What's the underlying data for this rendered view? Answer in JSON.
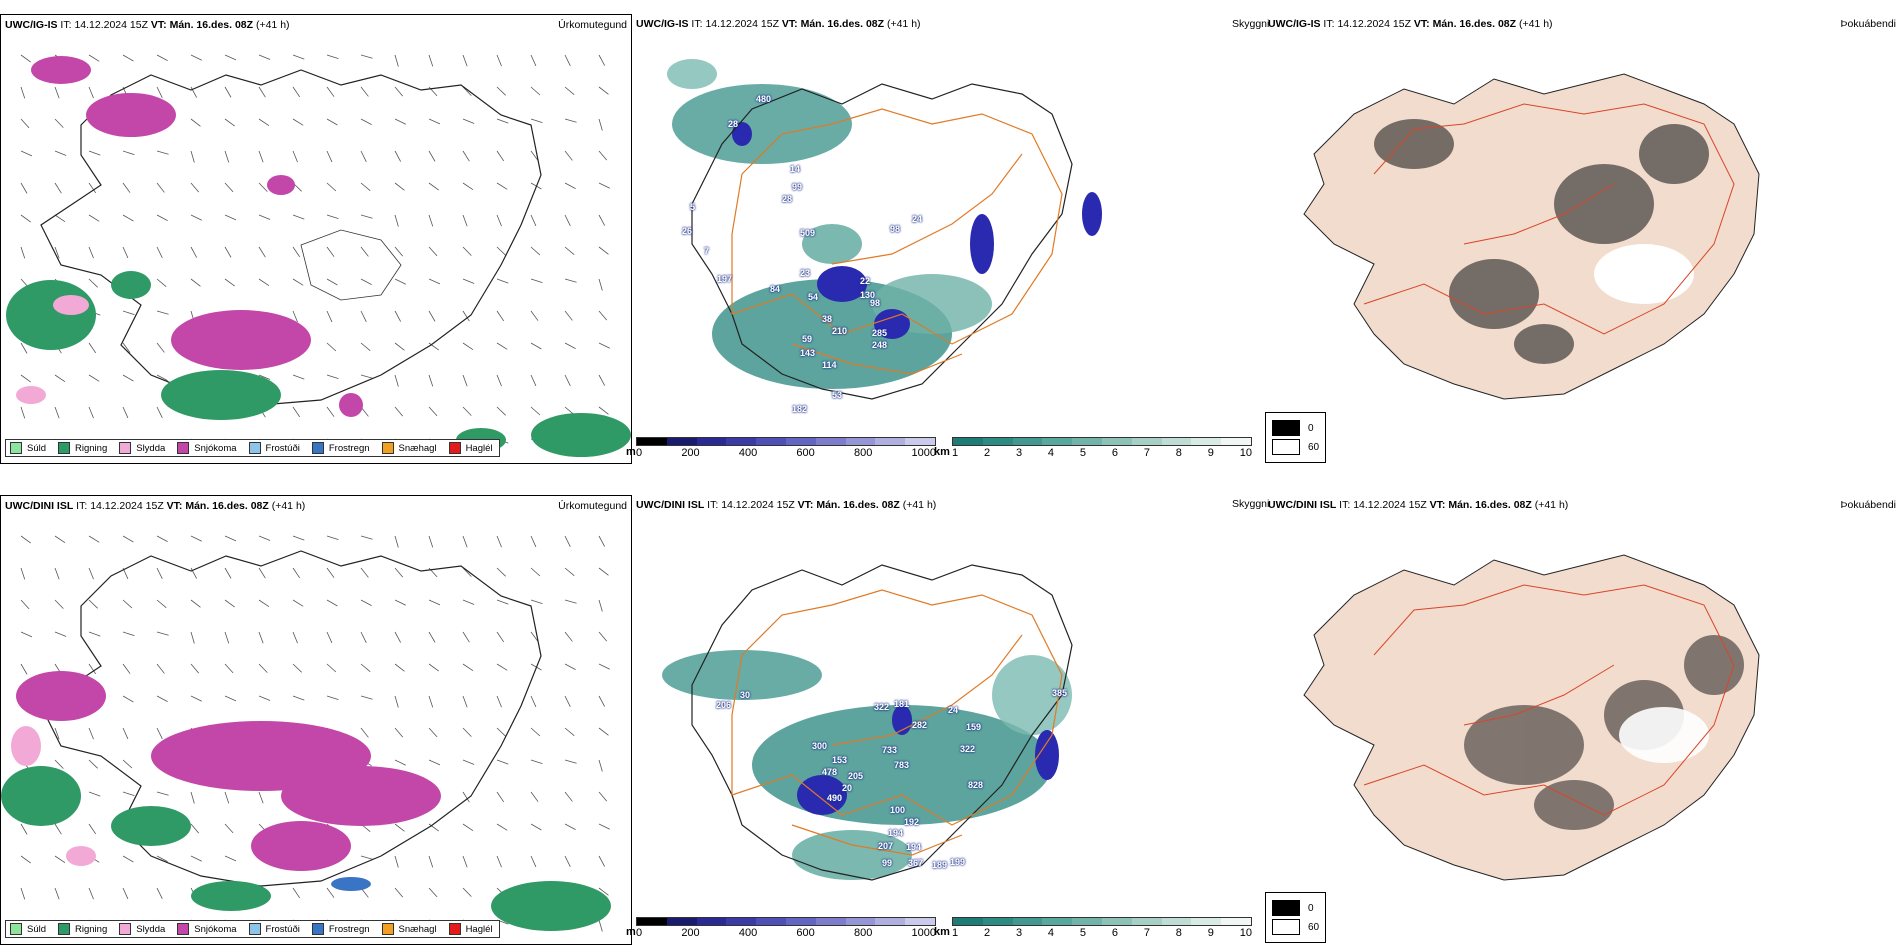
{
  "rows": [
    {
      "model": "UWC/IG-IS",
      "it": "14.12.2024 15Z",
      "vt": "Mán. 16.des. 08Z",
      "lead": "(+41 h)",
      "labels": [
        {
          "t": "480"
        },
        {
          "t": "28"
        },
        {
          "t": "14"
        },
        {
          "t": "99"
        },
        {
          "t": "28"
        },
        {
          "t": "509"
        },
        {
          "t": "26"
        },
        {
          "t": "7"
        },
        {
          "t": "5"
        },
        {
          "t": "197"
        },
        {
          "t": "84"
        },
        {
          "t": "23"
        },
        {
          "t": "54"
        },
        {
          "t": "130"
        },
        {
          "t": "22"
        },
        {
          "t": "98"
        },
        {
          "t": "38"
        },
        {
          "t": "210"
        },
        {
          "t": "59"
        },
        {
          "t": "143"
        },
        {
          "t": "114"
        },
        {
          "t": "285"
        },
        {
          "t": "248"
        },
        {
          "t": "182"
        },
        {
          "t": "53"
        },
        {
          "t": "98"
        },
        {
          "t": "24"
        }
      ]
    },
    {
      "model": "UWC/DINI ISL",
      "it": "14.12.2024 15Z",
      "vt": "Mán. 16.des. 08Z",
      "lead": "(+41 h)",
      "labels": [
        {
          "t": "206"
        },
        {
          "t": "30"
        },
        {
          "t": "322"
        },
        {
          "t": "181"
        },
        {
          "t": "282"
        },
        {
          "t": "24"
        },
        {
          "t": "159"
        },
        {
          "t": "300"
        },
        {
          "t": "733"
        },
        {
          "t": "322"
        },
        {
          "t": "153"
        },
        {
          "t": "783"
        },
        {
          "t": "478"
        },
        {
          "t": "205"
        },
        {
          "t": "828"
        },
        {
          "t": "20"
        },
        {
          "t": "490"
        },
        {
          "t": "100"
        },
        {
          "t": "192"
        },
        {
          "t": "194"
        },
        {
          "t": "207"
        },
        {
          "t": "194"
        },
        {
          "t": "99"
        },
        {
          "t": "367"
        },
        {
          "t": "189"
        },
        {
          "t": "199"
        },
        {
          "t": "385"
        }
      ]
    }
  ],
  "panel_titles": {
    "precip": "Úrkomutegund",
    "visibility": "Skyggni",
    "fog": "Þokuábendi"
  },
  "it_label": "IT:",
  "vt_label": "VT:",
  "precip_legend": [
    {
      "label": "Súld",
      "color": "#8fe39a"
    },
    {
      "label": "Rigning",
      "color": "#2f9a66"
    },
    {
      "label": "Slydda",
      "color": "#f2a9d6"
    },
    {
      "label": "Snjókoma",
      "color": "#c347a8"
    },
    {
      "label": "Frostúði",
      "color": "#8ec3ea"
    },
    {
      "label": "Frostregn",
      "color": "#3a74c4"
    },
    {
      "label": "Snæhagl",
      "color": "#f2a022"
    },
    {
      "label": "Haglél",
      "color": "#e31b1b"
    }
  ],
  "height_bar": {
    "unit": "m",
    "ticks": [
      "0",
      "200",
      "400",
      "600",
      "800",
      "1000"
    ],
    "colors": [
      "#000000",
      "#1a1a6e",
      "#2a2a92",
      "#3b3ba8",
      "#4f4fb6",
      "#6565c2",
      "#7d7dcc",
      "#9696d6",
      "#b0b0e0",
      "#cacaea"
    ]
  },
  "vis_bar": {
    "unit": "km",
    "ticks": [
      "1",
      "2",
      "3",
      "4",
      "5",
      "6",
      "7",
      "8",
      "9",
      "10"
    ],
    "colors": [
      "#1d7c76",
      "#2e8b84",
      "#43998f",
      "#5aa79c",
      "#72b4a9",
      "#8cc2b8",
      "#a6cfc6",
      "#c0ddd5",
      "#d9ebe5",
      "#f0f7f4"
    ]
  },
  "fog_legend": [
    {
      "value": "0",
      "color": "#000000"
    },
    {
      "value": "60",
      "color": "#ffffff"
    }
  ]
}
